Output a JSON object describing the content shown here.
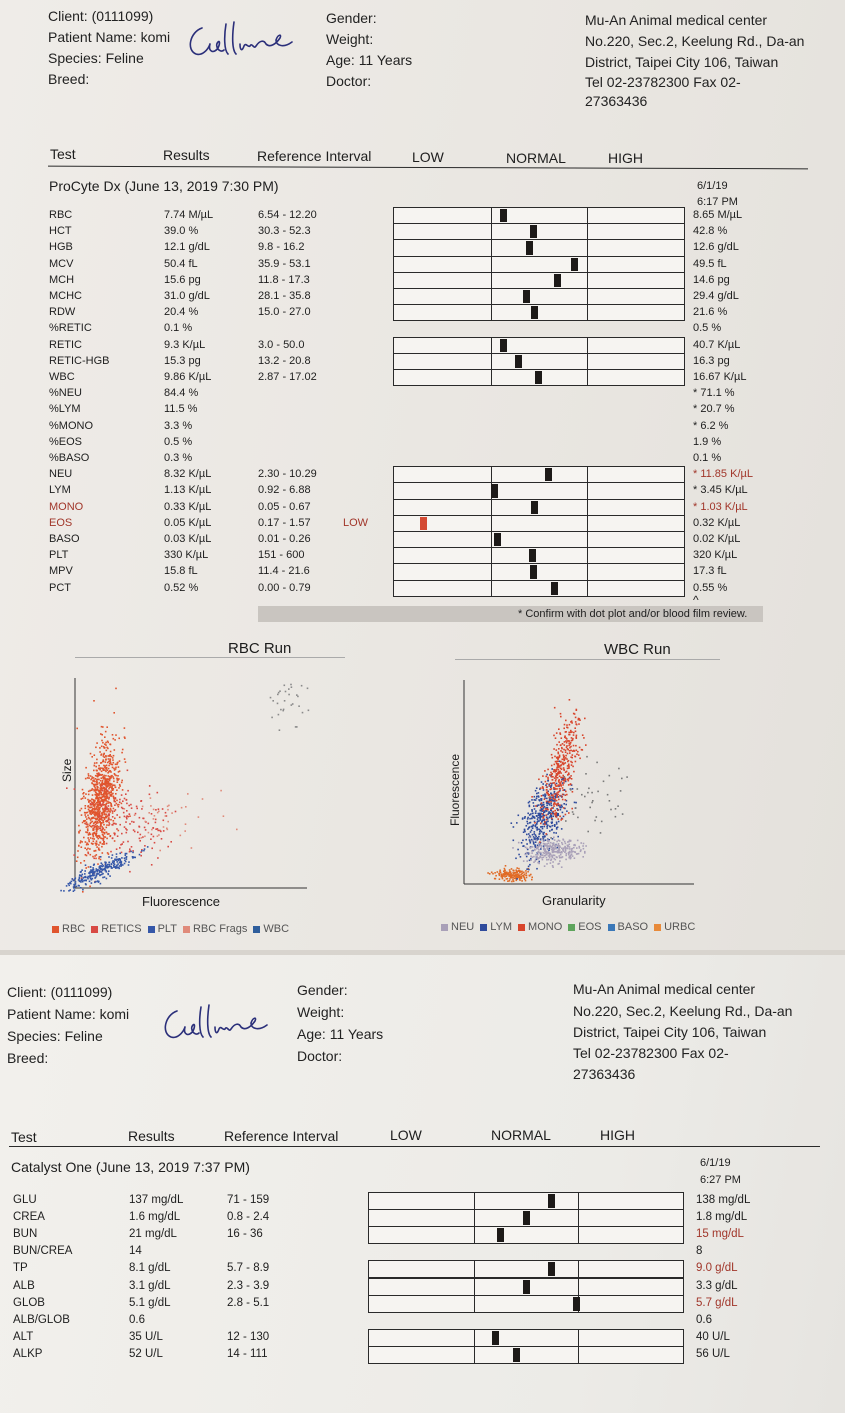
{
  "page1": {
    "client": {
      "client_label": "Client:",
      "client_value": "(0111099)",
      "name_label": "Patient Name:",
      "name_value": "komi",
      "species_label": "Species:",
      "species_value": "Feline",
      "breed_label": "Breed:"
    },
    "patient": {
      "gender": "Gender:",
      "weight": "Weight:",
      "age": "Age: 11 Years",
      "doctor": "Doctor:"
    },
    "clinic": {
      "line1": "Mu-An Animal medical center",
      "line2": "No.220, Sec.2, Keelung Rd., Da-an",
      "line3": "District, Taipei City 106, Taiwan",
      "line4": "Tel 02-23782300  Fax 02-",
      "line5": "27363436"
    },
    "columns": {
      "test": "Test",
      "results": "Results",
      "ref": "Reference Interval",
      "low": "LOW",
      "normal": "NORMAL",
      "high": "HIGH"
    },
    "section": "ProCyte Dx (June 13, 2019 7:30 PM)",
    "prev_date": "6/1/19",
    "prev_time": "6:17 PM",
    "rows": [
      {
        "test": "RBC",
        "result": "7.74 M/µL",
        "ref": "6.54 - 12.20",
        "flag": "",
        "prev": "8.65 M/µL",
        "marker": 0.13
      },
      {
        "test": "HCT",
        "result": "39.0 %",
        "ref": "30.3 - 52.3",
        "flag": "",
        "prev": "42.8 %",
        "marker": 0.44
      },
      {
        "test": "HGB",
        "result": "12.1 g/dL",
        "ref": "9.8 - 16.2",
        "flag": "",
        "prev": "12.6 g/dL",
        "marker": 0.4
      },
      {
        "test": "MCV",
        "result": "50.4 fL",
        "ref": "35.9 - 53.1",
        "flag": "",
        "prev": "49.5 fL",
        "marker": 0.86
      },
      {
        "test": "MCH",
        "result": "15.6 pg",
        "ref": "11.8 - 17.3",
        "flag": "",
        "prev": "14.6 pg",
        "marker": 0.69
      },
      {
        "test": "MCHC",
        "result": "31.0 g/dL",
        "ref": "28.1 - 35.8",
        "flag": "",
        "prev": "29.4 g/dL",
        "marker": 0.37
      },
      {
        "test": "RDW",
        "result": "20.4 %",
        "ref": "15.0 - 27.0",
        "flag": "",
        "prev": "21.6 %",
        "marker": 0.45
      },
      {
        "test": "%RETIC",
        "result": "0.1 %",
        "ref": "",
        "flag": "",
        "prev": "0.5 %"
      },
      {
        "test": "RETIC",
        "result": "9.3 K/µL",
        "ref": "3.0 - 50.0",
        "flag": "",
        "prev": "40.7 K/µL",
        "marker": 0.13
      },
      {
        "test": "RETIC-HGB",
        "result": "15.3 pg",
        "ref": "13.2 - 20.8",
        "flag": "",
        "prev": "16.3 pg",
        "marker": 0.28
      },
      {
        "test": "WBC",
        "result": "9.86 K/µL",
        "ref": "2.87 - 17.02",
        "flag": "",
        "prev": "16.67 K/µL",
        "marker": 0.49
      },
      {
        "test": "%NEU",
        "result": "84.4 %",
        "ref": "",
        "flag": "",
        "prev": "* 71.1 %"
      },
      {
        "test": "%LYM",
        "result": "11.5 %",
        "ref": "",
        "flag": "",
        "prev": "* 20.7 %"
      },
      {
        "test": "%MONO",
        "result": "3.3 %",
        "ref": "",
        "flag": "",
        "prev": "* 6.2 %"
      },
      {
        "test": "%EOS",
        "result": "0.5 %",
        "ref": "",
        "flag": "",
        "prev": "1.9 %"
      },
      {
        "test": "%BASO",
        "result": "0.3 %",
        "ref": "",
        "flag": "",
        "prev": "0.1 %"
      },
      {
        "test": "NEU",
        "result": "8.32 K/µL",
        "ref": "2.30 - 10.29",
        "flag": "",
        "prev": "* 11.85 K/µL",
        "prev_red": true,
        "marker": 0.59
      },
      {
        "test": "LYM",
        "result": "1.13 K/µL",
        "ref": "0.92 - 6.88",
        "flag": "",
        "prev": "* 3.45 K/µL",
        "marker": 0.03
      },
      {
        "test": "MONO",
        "result": "0.33 K/µL",
        "ref": "0.05 - 0.67",
        "flag": "",
        "prev": "* 1.03 K/µL",
        "prev_red": true,
        "red": true,
        "marker": 0.45
      },
      {
        "test": "EOS",
        "result": "0.05 K/µL",
        "ref": "0.17 - 1.57",
        "flag": "LOW",
        "prev": "0.32 K/µL",
        "red": true,
        "marker_low": 0.09
      },
      {
        "test": "BASO",
        "result": "0.03 K/µL",
        "ref": "0.01 - 0.26",
        "flag": "",
        "prev": "0.02 K/µL",
        "marker": 0.07
      },
      {
        "test": "PLT",
        "result": "330 K/µL",
        "ref": "151 - 600",
        "flag": "",
        "prev": "320 K/µL",
        "marker": 0.43
      },
      {
        "test": "MPV",
        "result": "15.8 fL",
        "ref": "11.4 - 21.6",
        "flag": "",
        "prev": "17.3 fL",
        "marker": 0.44
      },
      {
        "test": "PCT",
        "result": "0.52 %",
        "ref": "0.00 - 0.79",
        "flag": "",
        "prev": "0.55 %",
        "marker": 0.65
      }
    ],
    "confirm_note": "* Confirm with dot plot and/or blood film review.",
    "rbc_run": {
      "title": "RBC Run",
      "xlabel": "Fluorescence",
      "ylabel": "Size",
      "legend": [
        {
          "name": "RBC",
          "color": "#e0552e"
        },
        {
          "name": "RETICS",
          "color": "#d84a44"
        },
        {
          "name": "PLT",
          "color": "#3557a8"
        },
        {
          "name": "RBC Frags",
          "color": "#e08a7a"
        },
        {
          "name": "WBC",
          "color": "#2f5e9c"
        }
      ]
    },
    "wbc_run": {
      "title": "WBC Run",
      "xlabel": "Granularity",
      "ylabel": "Fluorescence",
      "legend": [
        {
          "name": "NEU",
          "color": "#a9a0b8"
        },
        {
          "name": "LYM",
          "color": "#2f4b9c"
        },
        {
          "name": "MONO",
          "color": "#d8452c"
        },
        {
          "name": "EOS",
          "color": "#5ea45c"
        },
        {
          "name": "BASO",
          "color": "#3b78b8"
        },
        {
          "name": "URBC",
          "color": "#e88a3a"
        }
      ]
    }
  },
  "page2": {
    "client": {
      "client_label": "Client:",
      "client_value": "(0111099)",
      "name_label": "Patient Name:",
      "name_value": "komi",
      "species_label": "Species:",
      "species_value": "Feline",
      "breed_label": "Breed:"
    },
    "patient": {
      "gender": "Gender:",
      "weight": "Weight:",
      "age": "Age: 11 Years",
      "doctor": "Doctor:"
    },
    "clinic": {
      "line1": "Mu-An Animal medical center",
      "line2": "No.220, Sec.2, Keelung Rd., Da-an",
      "line3": "District, Taipei City 106, Taiwan",
      "line4": "Tel 02-23782300  Fax 02-",
      "line5": "27363436"
    },
    "columns": {
      "test": "Test",
      "results": "Results",
      "ref": "Reference Interval",
      "low": "LOW",
      "normal": "NORMAL",
      "high": "HIGH"
    },
    "section": "Catalyst One (June 13, 2019 7:37 PM)",
    "prev_date": "6/1/19",
    "prev_time": "6:27 PM",
    "rows": [
      {
        "test": "GLU",
        "result": "137 mg/dL",
        "ref": "71 - 159",
        "prev": "138 mg/dL",
        "marker": 0.74
      },
      {
        "test": "CREA",
        "result": "1.6 mg/dL",
        "ref": "0.8 - 2.4",
        "prev": "1.8 mg/dL",
        "marker": 0.5
      },
      {
        "test": "BUN",
        "result": "21 mg/dL",
        "ref": "16 - 36",
        "prev": "15 mg/dL",
        "prev_red": true,
        "marker": 0.25
      },
      {
        "test": "BUN/CREA",
        "result": "14",
        "ref": "",
        "prev": "8"
      },
      {
        "test": "TP",
        "result": "8.1 g/dL",
        "ref": "5.7 - 8.9",
        "prev": "9.0 g/dL",
        "prev_red": true,
        "marker": 0.74
      },
      {
        "test": "ALB",
        "result": "3.1 g/dL",
        "ref": "2.3 - 3.9",
        "prev": "3.3 g/dL",
        "marker": 0.5
      },
      {
        "test": "GLOB",
        "result": "5.1 g/dL",
        "ref": "2.8 - 5.1",
        "prev": "5.7 g/dL",
        "prev_red": true,
        "marker": 0.98
      },
      {
        "test": "ALB/GLOB",
        "result": "0.6",
        "ref": "",
        "prev": "0.6"
      },
      {
        "test": "ALT",
        "result": "35 U/L",
        "ref": "12 - 130",
        "prev": "40 U/L",
        "marker": 0.2
      },
      {
        "test": "ALKP",
        "result": "52 U/L",
        "ref": "14 - 111",
        "prev": "56 U/L",
        "marker": 0.4
      }
    ]
  }
}
